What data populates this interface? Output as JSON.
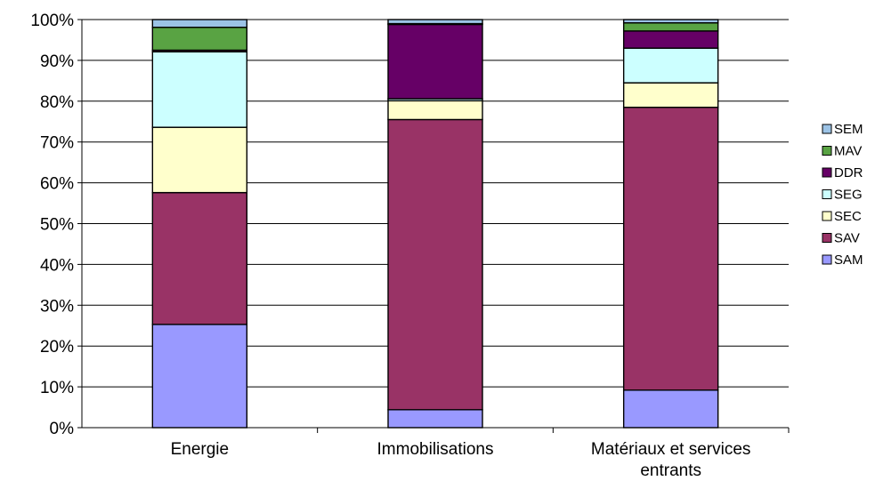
{
  "chart_data": {
    "type": "bar",
    "stacked": true,
    "percent": true,
    "title": "",
    "xlabel": "",
    "ylabel": "",
    "ylim": [
      0,
      100
    ],
    "y_ticks": [
      "0%",
      "10%",
      "20%",
      "30%",
      "40%",
      "50%",
      "60%",
      "70%",
      "80%",
      "90%",
      "100%"
    ],
    "grid": true,
    "legend_position": "right",
    "categories": [
      "Energie",
      "Immobilisations",
      "Matériaux et services entrants"
    ],
    "series": [
      {
        "name": "SAM",
        "color": "#9999ff",
        "values": [
          25.3,
          4.4,
          9.2
        ]
      },
      {
        "name": "SAV",
        "color": "#993366",
        "values": [
          32.3,
          71.1,
          69.3
        ]
      },
      {
        "name": "SEC",
        "color": "#ffffcc",
        "values": [
          16.0,
          4.6,
          6.0
        ]
      },
      {
        "name": "SEG",
        "color": "#ccffff",
        "values": [
          18.5,
          0.5,
          8.5
        ]
      },
      {
        "name": "DDR",
        "color": "#660066",
        "values": [
          0.4,
          18.2,
          4.2
        ]
      },
      {
        "name": "MAV",
        "color": "#59a343",
        "values": [
          5.6,
          0.2,
          2.0
        ]
      },
      {
        "name": "SEM",
        "color": "#9cc3e6",
        "values": [
          1.9,
          1.0,
          0.8
        ]
      }
    ]
  }
}
